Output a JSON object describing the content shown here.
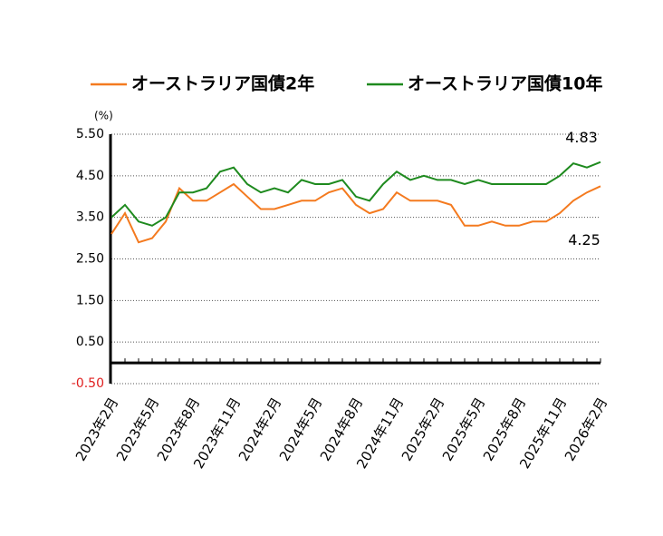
{
  "chart_data": {
    "type": "line",
    "y_unit": "(%)",
    "categories": [
      "2023年2月",
      null,
      null,
      "2023年5月",
      null,
      null,
      "2023年8月",
      null,
      null,
      "2023年11月",
      null,
      null,
      "2024年2月",
      null,
      null,
      "2024年5月",
      null,
      null,
      "2024年8月",
      null,
      null,
      "2024年11月",
      null,
      null,
      "2025年2月",
      null,
      null,
      "2025年5月",
      null,
      null,
      "2025年8月",
      null,
      null,
      "2025年11月",
      null,
      null,
      "2026年2月"
    ],
    "series": [
      {
        "name": "オーストラリア国債2年",
        "color": "#f47a1f",
        "values": [
          3.1,
          3.6,
          2.9,
          3.0,
          3.4,
          4.2,
          3.9,
          3.9,
          4.1,
          4.3,
          4.0,
          3.7,
          3.7,
          3.8,
          3.9,
          3.9,
          4.1,
          4.2,
          3.8,
          3.6,
          3.7,
          4.1,
          3.9,
          3.9,
          3.9,
          3.8,
          3.3,
          3.3,
          3.4,
          3.3,
          3.3,
          3.4,
          3.4,
          3.6,
          3.9,
          4.1,
          4.25
        ]
      },
      {
        "name": "オーストラリア国債10年",
        "color": "#1e8a1e",
        "values": [
          3.5,
          3.8,
          3.4,
          3.3,
          3.5,
          4.1,
          4.1,
          4.2,
          4.6,
          4.7,
          4.3,
          4.1,
          4.2,
          4.1,
          4.4,
          4.3,
          4.3,
          4.4,
          4.0,
          3.9,
          4.3,
          4.6,
          4.4,
          4.5,
          4.4,
          4.4,
          4.3,
          4.4,
          4.3,
          4.3,
          4.3,
          4.3,
          4.3,
          4.5,
          4.8,
          4.7,
          4.83
        ]
      }
    ],
    "ylim": [
      -0.5,
      5.5
    ],
    "yticks": [
      {
        "value": -0.5,
        "label": "-0.50"
      },
      {
        "value": 0.5,
        "label": "0.50"
      },
      {
        "value": 1.5,
        "label": "1.50"
      },
      {
        "value": 2.5,
        "label": "2.50"
      },
      {
        "value": 3.5,
        "label": "3.50"
      },
      {
        "value": 4.5,
        "label": "4.50"
      },
      {
        "value": 5.5,
        "label": "5.50"
      }
    ],
    "grid": true
  }
}
